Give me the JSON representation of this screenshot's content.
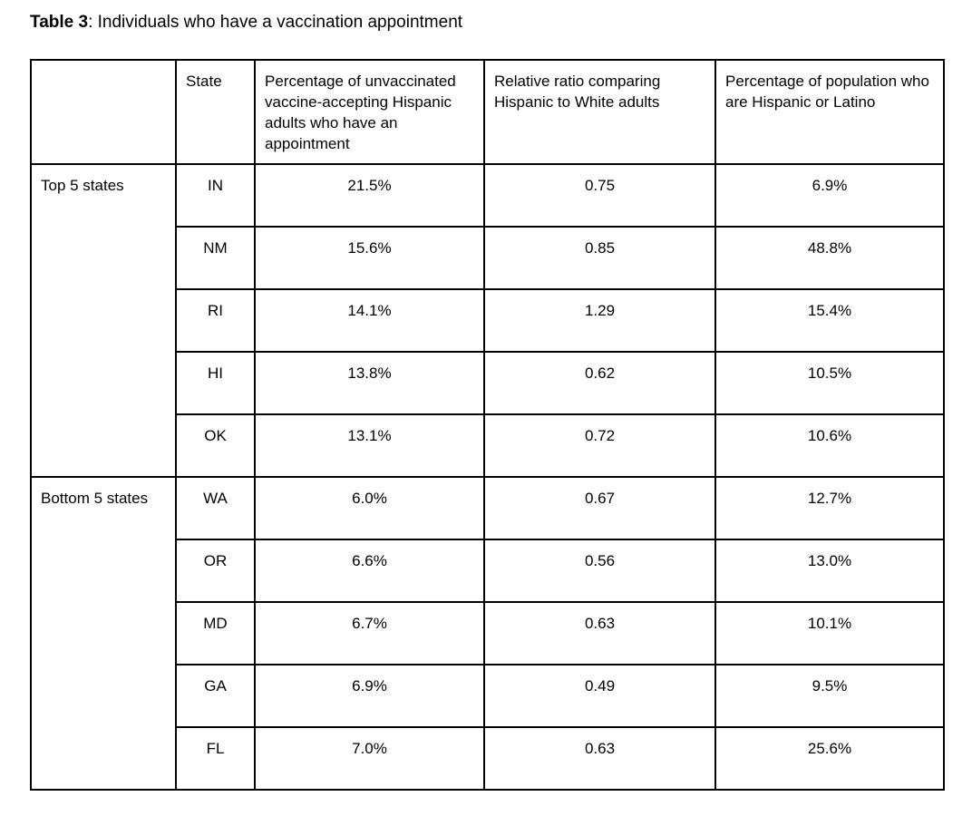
{
  "page": {
    "title_bold": "Table 3",
    "title_rest": ": Individuals who have a vaccination appointment"
  },
  "table": {
    "headers": [
      "",
      "State",
      "Percentage of unvaccinated vaccine-accepting Hispanic adults who have an appointment",
      "Relative ratio comparing Hispanic to White adults",
      "Percentage of population who are Hispanic or Latino"
    ],
    "groups": [
      {
        "label": "Top 5 states",
        "rows": [
          {
            "state": "IN",
            "appointment_pct": "21.5%",
            "relative_ratio": "0.75",
            "hispanic_pct": "6.9%"
          },
          {
            "state": "NM",
            "appointment_pct": "15.6%",
            "relative_ratio": "0.85",
            "hispanic_pct": "48.8%"
          },
          {
            "state": "RI",
            "appointment_pct": "14.1%",
            "relative_ratio": "1.29",
            "hispanic_pct": "15.4%"
          },
          {
            "state": "HI",
            "appointment_pct": "13.8%",
            "relative_ratio": "0.62",
            "hispanic_pct": "10.5%"
          },
          {
            "state": "OK",
            "appointment_pct": "13.1%",
            "relative_ratio": "0.72",
            "hispanic_pct": "10.6%"
          }
        ]
      },
      {
        "label": "Bottom 5 states",
        "rows": [
          {
            "state": "WA",
            "appointment_pct": "6.0%",
            "relative_ratio": "0.67",
            "hispanic_pct": "12.7%"
          },
          {
            "state": "OR",
            "appointment_pct": "6.6%",
            "relative_ratio": "0.56",
            "hispanic_pct": "13.0%"
          },
          {
            "state": "MD",
            "appointment_pct": "6.7%",
            "relative_ratio": "0.63",
            "hispanic_pct": "10.1%"
          },
          {
            "state": "GA",
            "appointment_pct": "6.9%",
            "relative_ratio": "0.49",
            "hispanic_pct": "9.5%"
          },
          {
            "state": "FL",
            "appointment_pct": "7.0%",
            "relative_ratio": "0.63",
            "hispanic_pct": "25.6%"
          }
        ]
      }
    ]
  }
}
